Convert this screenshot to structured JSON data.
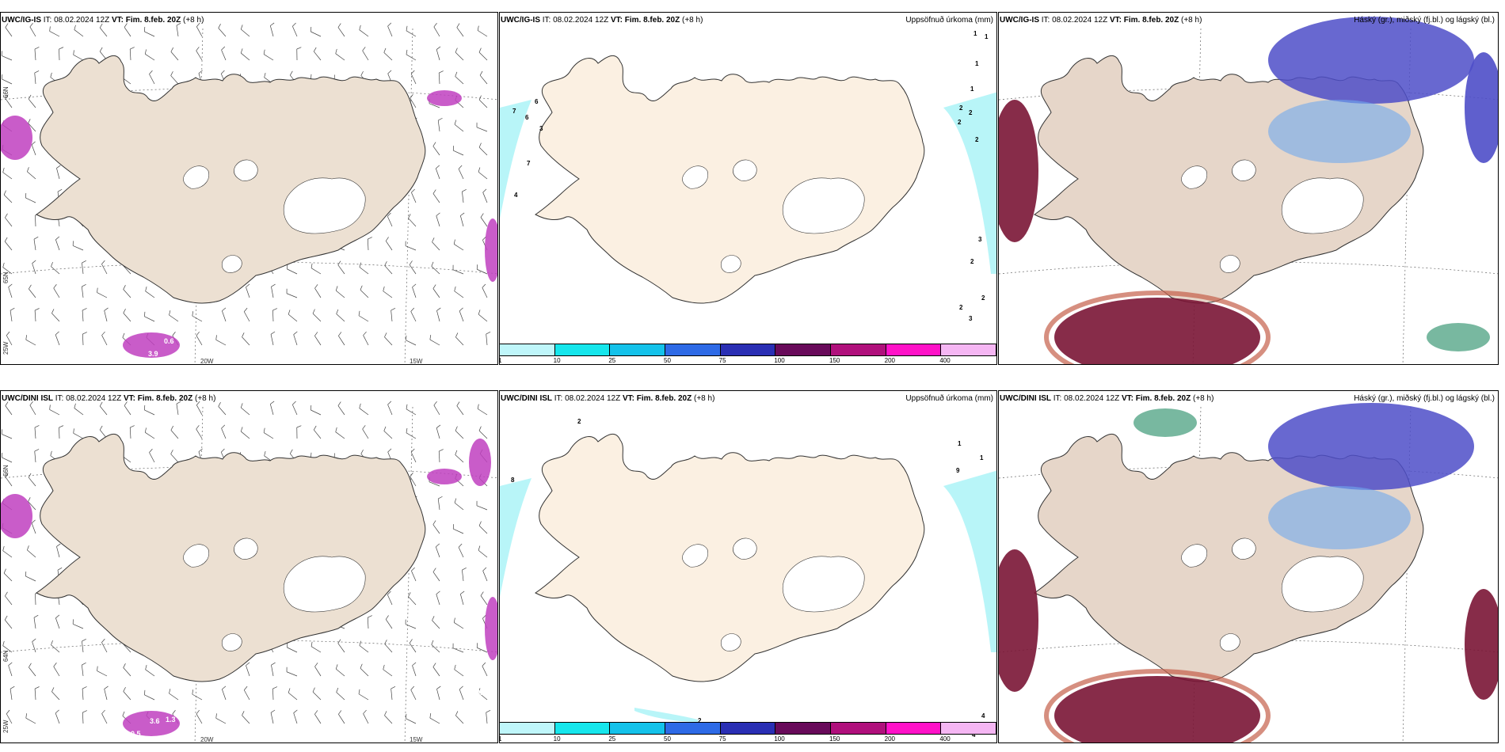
{
  "colors": {
    "land_wind": "#ece0d2",
    "land_precip": "#fbf0e2",
    "land_cloud": "#e6d6c9",
    "coast": "#333333",
    "glacier": "#ffffff",
    "convergence": "#c040c0",
    "precip_light": "#b8f5f8",
    "cloud_high": "#4e4ec8",
    "cloud_high_light": "#6fa9ef",
    "cloud_low": "#7a1535",
    "cloud_low_edge": "#c4604a",
    "cloud_mid_green": "#3e9a78"
  },
  "rows": [
    {
      "model": "UWC/IG-IS",
      "panels": [
        {
          "kind": "wind",
          "model": "UWC/IG-IS",
          "it_label": "IT: 08.02.2024 12Z",
          "vt_label": "VT: Fim. 8.feb. 20Z",
          "lead": "(+8 h)",
          "coords": {
            "left_top": "66N",
            "left_mid": "65N",
            "left_bot": "25W",
            "bot_a": "20W",
            "bot_b": "15W"
          },
          "labels": [
            "0.6",
            "3.9"
          ]
        },
        {
          "kind": "precip",
          "model": "UWC/IG-IS",
          "it_label": "IT: 08.02.2024 12Z",
          "vt_label": "VT: Fim. 8.feb. 20Z",
          "lead": "(+8 h)",
          "title_right": "Uppsöfnuð úrkoma (mm)",
          "numbers": [
            "7",
            "6",
            "6",
            "3",
            "7",
            "4",
            "1",
            "1",
            "1",
            "1",
            "2",
            "2",
            "2",
            "2",
            "3",
            "2",
            "2",
            "3",
            "2"
          ]
        },
        {
          "kind": "cloud",
          "model": "UWC/IG-IS",
          "it_label": "IT: 08.02.2024 12Z",
          "vt_label": "VT: Fim. 8.feb. 20Z",
          "lead": "(+8 h)",
          "title_right": "Háský (gr.), miðský (fj.bl.) og lágský (bl.)"
        }
      ]
    },
    {
      "model": "UWC/DINI ISL",
      "panels": [
        {
          "kind": "wind",
          "model": "UWC/DINI ISL",
          "it_label": "IT: 08.02.2024 12Z",
          "vt_label": "VT: Fim. 8.feb. 20Z",
          "lead": "(+8 h)",
          "coords": {
            "left_top": "66N",
            "left_mid": "64N",
            "left_bot": "25W",
            "bot_a": "20W",
            "bot_b": "15W"
          },
          "labels": [
            "3.6",
            "1.3",
            "0.5",
            "3.0"
          ]
        },
        {
          "kind": "precip",
          "model": "UWC/DINI ISL",
          "it_label": "IT: 08.02.2024 12Z",
          "vt_label": "VT: Fim. 8.feb. 20Z",
          "lead": "(+8 h)",
          "title_right": "Uppsöfnuð úrkoma (mm)",
          "numbers": [
            "2",
            "8",
            "1",
            "1",
            "9",
            "4",
            "4",
            "2"
          ]
        },
        {
          "kind": "cloud",
          "model": "UWC/DINI ISL",
          "it_label": "IT: 08.02.2024 12Z",
          "vt_label": "VT: Fim. 8.feb. 20Z",
          "lead": "(+8 h)",
          "title_right": "Háský (gr.), miðský (fj.bl.) og lágský (bl.)"
        }
      ]
    }
  ],
  "legend": {
    "labels": [
      "1",
      "10",
      "25",
      "50",
      "75",
      "100",
      "150",
      "200",
      "400"
    ],
    "colors": [
      "#bff6fa",
      "#16e6ec",
      "#14c2ea",
      "#2e6ae6",
      "#2a2fb4",
      "#680a5a",
      "#b0107c",
      "#ff12c8",
      "#f5b6f3"
    ]
  }
}
